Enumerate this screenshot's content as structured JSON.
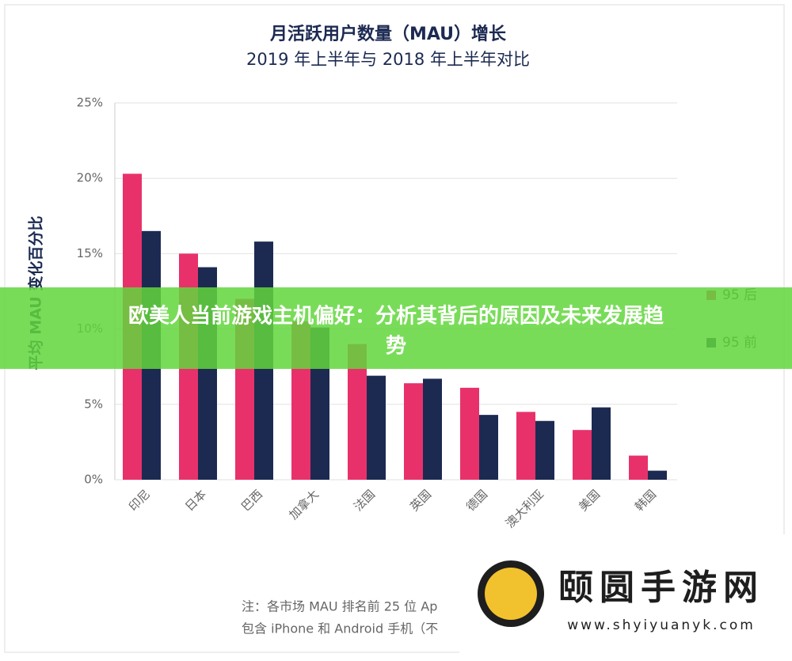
{
  "chart_data": {
    "type": "bar",
    "title": "月活跃用户数量（MAU）增长",
    "subtitle": "2019 年上半年与 2018 年上半年对比",
    "y_label": "平均 MAU 变化百分比",
    "categories": [
      "印尼",
      "日本",
      "巴西",
      "加拿大",
      "法国",
      "英国",
      "德国",
      "澳大利亚",
      "美国",
      "韩国"
    ],
    "series": [
      {
        "name": "95 后",
        "color": "#e8316b",
        "values": [
          20.3,
          15.0,
          12.0,
          10.5,
          9.0,
          6.4,
          6.1,
          4.5,
          3.3,
          1.6
        ]
      },
      {
        "name": "95 前",
        "color": "#1c2a52",
        "values": [
          16.5,
          14.1,
          15.8,
          10.1,
          6.9,
          6.7,
          4.3,
          3.9,
          4.8,
          0.6
        ]
      }
    ],
    "ylim": [
      0,
      25
    ],
    "yticks": [
      {
        "value": 0,
        "label": "0%"
      },
      {
        "value": 5,
        "label": "5%"
      },
      {
        "value": 10,
        "label": "10%"
      },
      {
        "value": 15,
        "label": "15%"
      },
      {
        "value": 20,
        "label": "20%"
      },
      {
        "value": 25,
        "label": "25%"
      }
    ],
    "grid": true,
    "legend": "right",
    "notes": [
      "注：各市场 MAU 排名前 25 位 Ap",
      "包含 iPhone 和 Android 手机（不"
    ]
  },
  "overlay": {
    "headline": "欧美人当前游戏主机偏好：分析其背后的原因及未来发展趋势"
  },
  "logo": {
    "name": "颐圆手游网",
    "url": "www.shyiyuanyk.com"
  }
}
